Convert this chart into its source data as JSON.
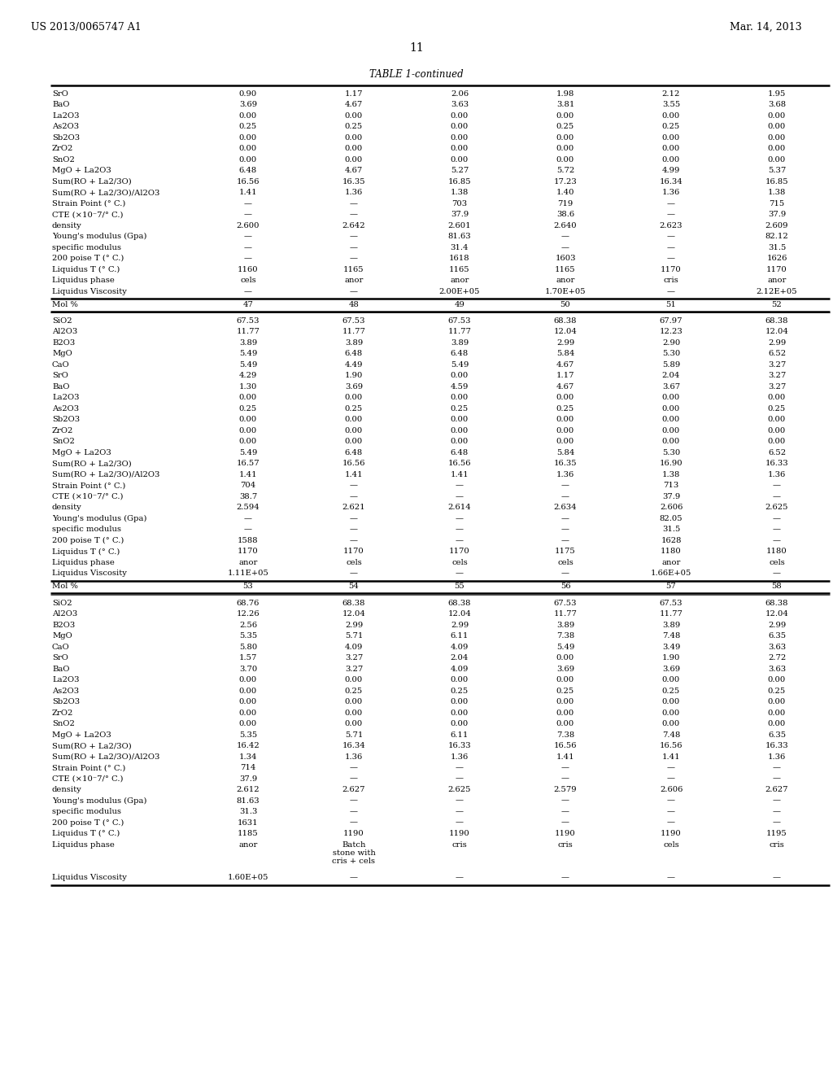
{
  "header_left": "US 2013/0065747 A1",
  "header_right": "Mar. 14, 2013",
  "page_number": "11",
  "table_title": "TABLE 1-continued",
  "background_color": "#ffffff",
  "text_color": "#000000",
  "font_size": 7.2,
  "title_font_size": 8.5,
  "header_font_size": 9,
  "section1_rows": [
    [
      "SrO",
      "0.90",
      "1.17",
      "2.06",
      "1.98",
      "2.12",
      "1.95"
    ],
    [
      "BaO",
      "3.69",
      "4.67",
      "3.63",
      "3.81",
      "3.55",
      "3.68"
    ],
    [
      "La2O3",
      "0.00",
      "0.00",
      "0.00",
      "0.00",
      "0.00",
      "0.00"
    ],
    [
      "As2O3",
      "0.25",
      "0.25",
      "0.00",
      "0.25",
      "0.25",
      "0.00"
    ],
    [
      "Sb2O3",
      "0.00",
      "0.00",
      "0.00",
      "0.00",
      "0.00",
      "0.00"
    ],
    [
      "ZrO2",
      "0.00",
      "0.00",
      "0.00",
      "0.00",
      "0.00",
      "0.00"
    ],
    [
      "SnO2",
      "0.00",
      "0.00",
      "0.00",
      "0.00",
      "0.00",
      "0.00"
    ],
    [
      "MgO + La2O3",
      "6.48",
      "4.67",
      "5.27",
      "5.72",
      "4.99",
      "5.37"
    ],
    [
      "Sum(RO + La2/3O)",
      "16.56",
      "16.35",
      "16.85",
      "17.23",
      "16.34",
      "16.85"
    ],
    [
      "Sum(RO + La2/3O)/Al2O3",
      "1.41",
      "1.36",
      "1.38",
      "1.40",
      "1.36",
      "1.38"
    ],
    [
      "Strain Point (° C.)",
      "—",
      "—",
      "703",
      "719",
      "—",
      "715"
    ],
    [
      "CTE (×10⁻7/° C.)",
      "—",
      "—",
      "37.9",
      "38.6",
      "—",
      "37.9"
    ],
    [
      "density",
      "2.600",
      "2.642",
      "2.601",
      "2.640",
      "2.623",
      "2.609"
    ],
    [
      "Young's modulus (Gpa)",
      "—",
      "—",
      "81.63",
      "—",
      "—",
      "82.12"
    ],
    [
      "specific modulus",
      "—",
      "—",
      "31.4",
      "—",
      "—",
      "31.5"
    ],
    [
      "200 poise T (° C.)",
      "—",
      "—",
      "1618",
      "1603",
      "—",
      "1626"
    ],
    [
      "Liquidus T (° C.)",
      "1160",
      "1165",
      "1165",
      "1165",
      "1170",
      "1170"
    ],
    [
      "Liquidus phase",
      "cels",
      "anor",
      "anor",
      "anor",
      "cris",
      "anor"
    ],
    [
      "Liquidus Viscosity",
      "—",
      "—",
      "2.00E+05",
      "1.70E+05",
      "—",
      "2.12E+05"
    ]
  ],
  "section2_header": [
    "Mol %",
    "47",
    "48",
    "49",
    "50",
    "51",
    "52"
  ],
  "section2_rows": [
    [
      "SiO2",
      "67.53",
      "67.53",
      "67.53",
      "68.38",
      "67.97",
      "68.38"
    ],
    [
      "Al2O3",
      "11.77",
      "11.77",
      "11.77",
      "12.04",
      "12.23",
      "12.04"
    ],
    [
      "B2O3",
      "3.89",
      "3.89",
      "3.89",
      "2.99",
      "2.90",
      "2.99"
    ],
    [
      "MgO",
      "5.49",
      "6.48",
      "6.48",
      "5.84",
      "5.30",
      "6.52"
    ],
    [
      "CaO",
      "5.49",
      "4.49",
      "5.49",
      "4.67",
      "5.89",
      "3.27"
    ],
    [
      "SrO",
      "4.29",
      "1.90",
      "0.00",
      "1.17",
      "2.04",
      "3.27"
    ],
    [
      "BaO",
      "1.30",
      "3.69",
      "4.59",
      "4.67",
      "3.67",
      "3.27"
    ],
    [
      "La2O3",
      "0.00",
      "0.00",
      "0.00",
      "0.00",
      "0.00",
      "0.00"
    ],
    [
      "As2O3",
      "0.25",
      "0.25",
      "0.25",
      "0.25",
      "0.00",
      "0.25"
    ],
    [
      "Sb2O3",
      "0.00",
      "0.00",
      "0.00",
      "0.00",
      "0.00",
      "0.00"
    ],
    [
      "ZrO2",
      "0.00",
      "0.00",
      "0.00",
      "0.00",
      "0.00",
      "0.00"
    ],
    [
      "SnO2",
      "0.00",
      "0.00",
      "0.00",
      "0.00",
      "0.00",
      "0.00"
    ],
    [
      "MgO + La2O3",
      "5.49",
      "6.48",
      "6.48",
      "5.84",
      "5.30",
      "6.52"
    ],
    [
      "Sum(RO + La2/3O)",
      "16.57",
      "16.56",
      "16.56",
      "16.35",
      "16.90",
      "16.33"
    ],
    [
      "Sum(RO + La2/3O)/Al2O3",
      "1.41",
      "1.41",
      "1.41",
      "1.36",
      "1.38",
      "1.36"
    ],
    [
      "Strain Point (° C.)",
      "704",
      "—",
      "—",
      "—",
      "713",
      "—"
    ],
    [
      "CTE (×10⁻7/° C.)",
      "38.7",
      "—",
      "—",
      "—",
      "37.9",
      "—"
    ],
    [
      "density",
      "2.594",
      "2.621",
      "2.614",
      "2.634",
      "2.606",
      "2.625"
    ],
    [
      "Young's modulus (Gpa)",
      "—",
      "—",
      "—",
      "—",
      "82.05",
      "—"
    ],
    [
      "specific modulus",
      "—",
      "—",
      "—",
      "—",
      "31.5",
      "—"
    ],
    [
      "200 poise T (° C.)",
      "1588",
      "—",
      "—",
      "—",
      "1628",
      "—"
    ],
    [
      "Liquidus T (° C.)",
      "1170",
      "1170",
      "1170",
      "1175",
      "1180",
      "1180"
    ],
    [
      "Liquidus phase",
      "anor",
      "cels",
      "cels",
      "cels",
      "anor",
      "cels"
    ],
    [
      "Liquidus Viscosity",
      "1.11E+05",
      "—",
      "—",
      "—",
      "1.66E+05",
      "—"
    ]
  ],
  "section3_header": [
    "Mol %",
    "53",
    "54",
    "55",
    "56",
    "57",
    "58"
  ],
  "section3_rows": [
    [
      "SiO2",
      "68.76",
      "68.38",
      "68.38",
      "67.53",
      "67.53",
      "68.38"
    ],
    [
      "Al2O3",
      "12.26",
      "12.04",
      "12.04",
      "11.77",
      "11.77",
      "12.04"
    ],
    [
      "B2O3",
      "2.56",
      "2.99",
      "2.99",
      "3.89",
      "3.89",
      "2.99"
    ],
    [
      "MgO",
      "5.35",
      "5.71",
      "6.11",
      "7.38",
      "7.48",
      "6.35"
    ],
    [
      "CaO",
      "5.80",
      "4.09",
      "4.09",
      "5.49",
      "3.49",
      "3.63"
    ],
    [
      "SrO",
      "1.57",
      "3.27",
      "2.04",
      "0.00",
      "1.90",
      "2.72"
    ],
    [
      "BaO",
      "3.70",
      "3.27",
      "4.09",
      "3.69",
      "3.69",
      "3.63"
    ],
    [
      "La2O3",
      "0.00",
      "0.00",
      "0.00",
      "0.00",
      "0.00",
      "0.00"
    ],
    [
      "As2O3",
      "0.00",
      "0.25",
      "0.25",
      "0.25",
      "0.25",
      "0.25"
    ],
    [
      "Sb2O3",
      "0.00",
      "0.00",
      "0.00",
      "0.00",
      "0.00",
      "0.00"
    ],
    [
      "ZrO2",
      "0.00",
      "0.00",
      "0.00",
      "0.00",
      "0.00",
      "0.00"
    ],
    [
      "SnO2",
      "0.00",
      "0.00",
      "0.00",
      "0.00",
      "0.00",
      "0.00"
    ],
    [
      "MgO + La2O3",
      "5.35",
      "5.71",
      "6.11",
      "7.38",
      "7.48",
      "6.35"
    ],
    [
      "Sum(RO + La2/3O)",
      "16.42",
      "16.34",
      "16.33",
      "16.56",
      "16.56",
      "16.33"
    ],
    [
      "Sum(RO + La2/3O)/Al2O3",
      "1.34",
      "1.36",
      "1.36",
      "1.41",
      "1.41",
      "1.36"
    ],
    [
      "Strain Point (° C.)",
      "714",
      "—",
      "—",
      "—",
      "—",
      "—"
    ],
    [
      "CTE (×10⁻7/° C.)",
      "37.9",
      "—",
      "—",
      "—",
      "—",
      "—"
    ],
    [
      "density",
      "2.612",
      "2.627",
      "2.625",
      "2.579",
      "2.606",
      "2.627"
    ],
    [
      "Young's modulus (Gpa)",
      "81.63",
      "—",
      "—",
      "—",
      "—",
      "—"
    ],
    [
      "specific modulus",
      "31.3",
      "—",
      "—",
      "—",
      "—",
      "—"
    ],
    [
      "200 poise T (° C.)",
      "1631",
      "—",
      "—",
      "—",
      "—",
      "—"
    ],
    [
      "Liquidus T (° C.)",
      "1185",
      "1190",
      "1190",
      "1190",
      "1190",
      "1195"
    ],
    [
      "Liquidus phase",
      "anor",
      "Batch\nstone with\ncris + cels",
      "cris",
      "cris",
      "cels",
      "cris"
    ],
    [
      "Liquidus Viscosity",
      "1.60E+05",
      "—",
      "—",
      "—",
      "—",
      "—"
    ]
  ]
}
